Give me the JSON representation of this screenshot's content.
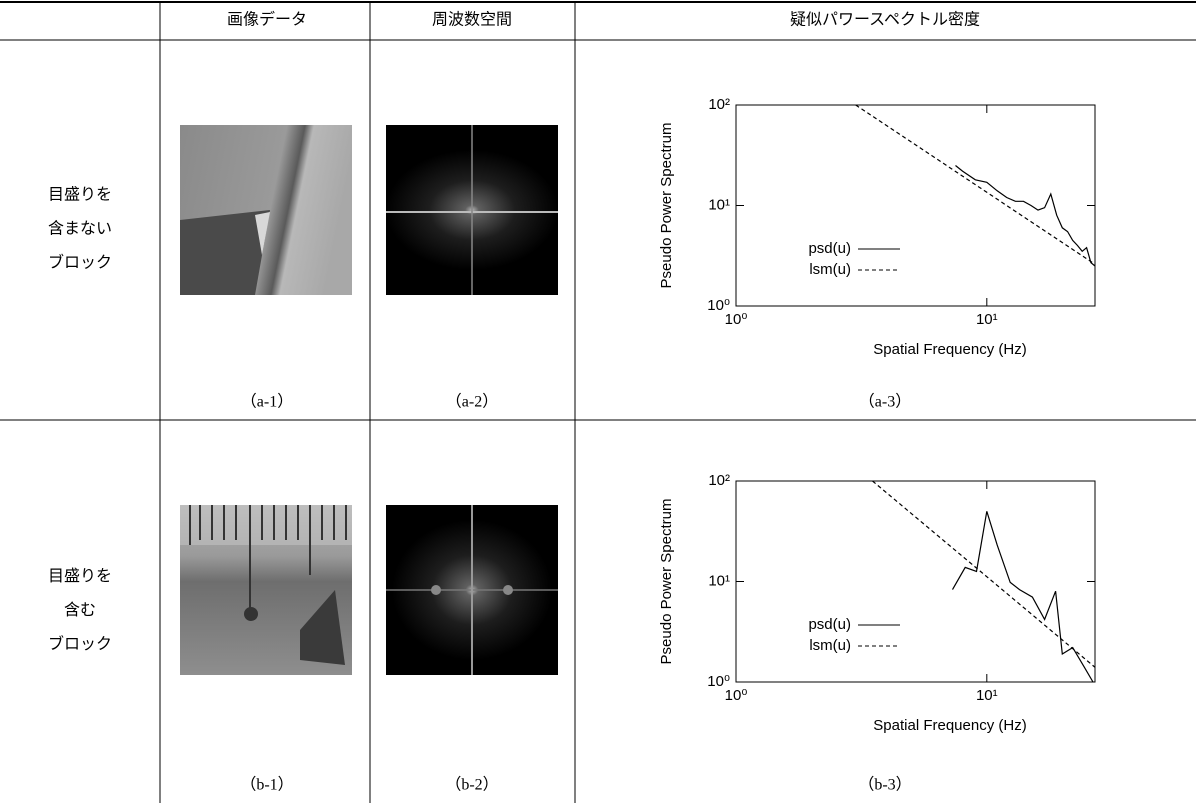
{
  "table": {
    "header": [
      "画像データ",
      "周波数空間",
      "疑似パワースペクトル密度"
    ],
    "rows": [
      {
        "label": [
          "目盛りを",
          "含まない",
          "ブロック"
        ],
        "captions": [
          "（a-1）",
          "（a-2）",
          "（a-3）"
        ]
      },
      {
        "label": [
          "目盛りを",
          "含む",
          "ブロック"
        ],
        "captions": [
          "（b-1）",
          "（b-2）",
          "（b-3）"
        ]
      }
    ]
  },
  "chart_data": [
    {
      "type": "line",
      "x_label": "Spatial Frequency (Hz)",
      "y_label": "Pseudo Power Spectrum",
      "log_x": true,
      "log_y": true,
      "xlim": [
        1,
        27
      ],
      "ylim": [
        1,
        100
      ],
      "xticks": [
        {
          "value": 1,
          "label": "10⁰"
        },
        {
          "value": 10,
          "label": "10¹"
        }
      ],
      "yticks": [
        {
          "value": 1,
          "label": "10⁰"
        },
        {
          "value": 10,
          "label": "10¹"
        },
        {
          "value": 100,
          "label": "10²"
        }
      ],
      "series": [
        {
          "name": "psd(u)",
          "color": "#000000",
          "dash": false,
          "x": [
            7.5,
            8,
            9,
            10,
            11,
            12,
            13,
            14,
            15,
            16,
            17,
            18,
            19,
            20,
            21,
            22,
            23,
            24,
            25,
            26,
            27
          ],
          "values": [
            25,
            22,
            18,
            17,
            14,
            12,
            11,
            11,
            10,
            9,
            9.5,
            13,
            8,
            6,
            5.5,
            4.5,
            4,
            3.5,
            3.8,
            2.7,
            2.5
          ]
        },
        {
          "name": "lsm(u)",
          "color": "#000000",
          "dash": true,
          "x": [
            3,
            27
          ],
          "values": [
            100,
            2.6
          ]
        }
      ]
    },
    {
      "type": "line",
      "x_label": "Spatial Frequency (Hz)",
      "y_label": "Pseudo Power Spectrum",
      "log_x": true,
      "log_y": true,
      "xlim": [
        1,
        27
      ],
      "ylim": [
        1,
        100
      ],
      "xticks": [
        {
          "value": 1,
          "label": "10⁰"
        },
        {
          "value": 10,
          "label": "10¹"
        }
      ],
      "yticks": [
        {
          "value": 1,
          "label": "10⁰"
        },
        {
          "value": 10,
          "label": "10¹"
        },
        {
          "value": 100,
          "label": "10²"
        }
      ],
      "series": [
        {
          "name": "psd(u)",
          "color": "#000000",
          "dash": false,
          "x": [
            7.3,
            8.2,
            9.1,
            10,
            11,
            12.4,
            13.5,
            15.2,
            17,
            18.8,
            20,
            22,
            24.5,
            26.5
          ],
          "values": [
            8.3,
            13.8,
            12.6,
            50,
            23,
            9.8,
            8.3,
            7,
            4.2,
            8,
            1.9,
            2.2,
            1.4,
            1
          ]
        },
        {
          "name": "lsm(u)",
          "color": "#000000",
          "dash": true,
          "x": [
            3.5,
            27
          ],
          "values": [
            100,
            1.4
          ]
        }
      ]
    }
  ]
}
